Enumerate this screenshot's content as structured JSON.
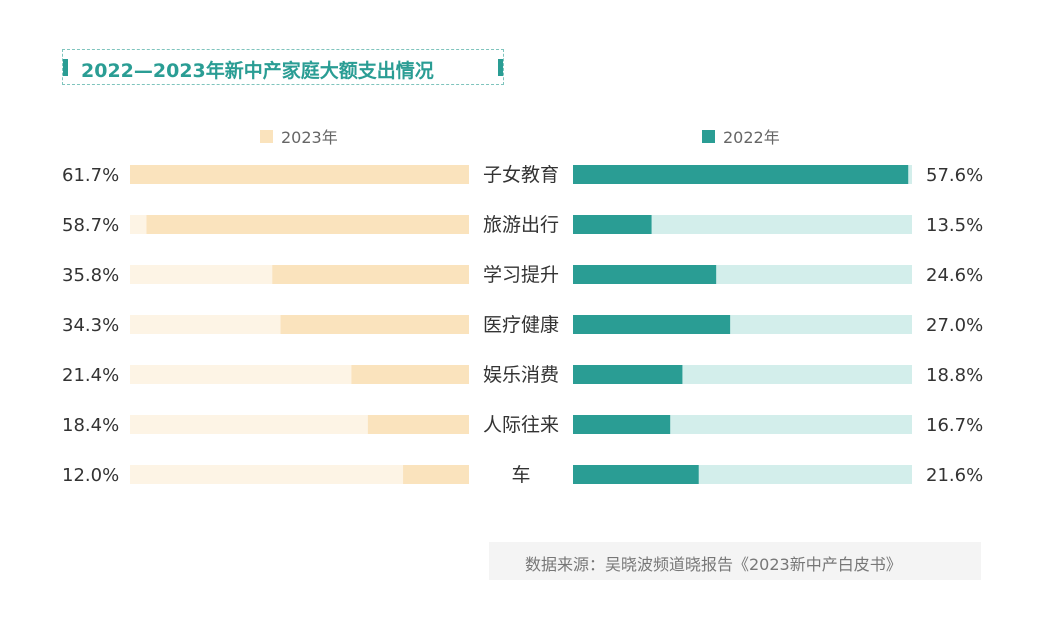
{
  "title": "2022—2023年新中产家庭大额支出情况",
  "source": "数据来源：吴晓波频道晓报告《2023新中产白皮书》",
  "colors": {
    "y2023_bar": "#fae3bd",
    "y2023_track": "#fdf4e5",
    "y2022_bar": "#2a9d94",
    "y2022_track": "#d3eeeb",
    "title": "#2a9d94"
  },
  "chart_data": {
    "type": "bar",
    "categories": [
      "子女教育",
      "旅游出行",
      "学习提升",
      "医疗健康",
      "娱乐消费",
      "人际往来",
      "车"
    ],
    "series": [
      {
        "name": "2023年",
        "values": [
          61.7,
          58.7,
          35.8,
          34.3,
          21.4,
          18.4,
          12.0
        ],
        "labels": [
          "61.7%",
          "58.7%",
          "35.8%",
          "34.3%",
          "21.4%",
          "18.4%",
          "12.0%"
        ]
      },
      {
        "name": "2022年",
        "values": [
          57.6,
          13.5,
          24.6,
          27.0,
          18.8,
          16.7,
          21.6
        ],
        "labels": [
          "57.6%",
          "13.5%",
          "24.6%",
          "27.0%",
          "18.8%",
          "16.7%",
          "21.6%"
        ]
      }
    ],
    "unit": "%"
  }
}
